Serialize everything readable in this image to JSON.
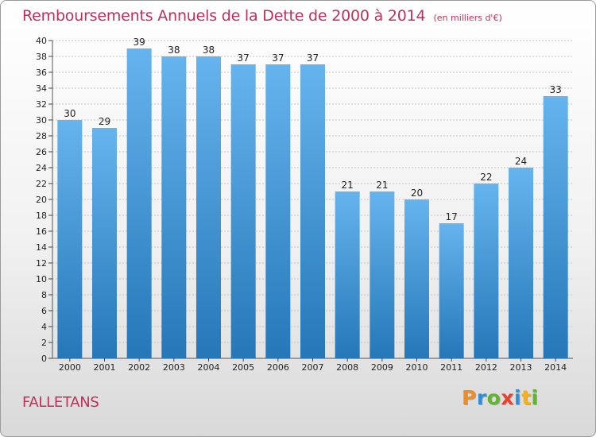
{
  "header": {
    "title": "Remboursements Annuels de la Dette de 2000 à 2014",
    "unit_note": "(en milliers d'€)"
  },
  "footer": {
    "commune": "FALLETANS",
    "brand": "Proxiti",
    "brand_letters": [
      {
        "char": "P",
        "color": "#f28c1e"
      },
      {
        "char": "r",
        "color": "#2e8fd6"
      },
      {
        "char": "o",
        "color": "#63b530"
      },
      {
        "char": "x",
        "color": "#e8412c"
      },
      {
        "char": "i",
        "color": "#2e8fd6"
      },
      {
        "char": "t",
        "color": "#f2b21e"
      },
      {
        "char": "i",
        "color": "#63b530"
      }
    ]
  },
  "colors": {
    "title": "#c0305a",
    "bar_light": "#66b4ee",
    "bar_dark": "#2577b8",
    "grid": "#c4c4c4"
  },
  "chart_data": {
    "type": "bar",
    "title": "Remboursements Annuels de la Dette de 2000 à 2014",
    "categories": [
      "2000",
      "2001",
      "2002",
      "2003",
      "2004",
      "2005",
      "2006",
      "2007",
      "2008",
      "2009",
      "2010",
      "2011",
      "2012",
      "2013",
      "2014"
    ],
    "values": [
      30,
      29,
      39,
      38,
      38,
      37,
      37,
      37,
      21,
      21,
      20,
      17,
      22,
      24,
      33
    ],
    "ylim": [
      0,
      40
    ],
    "yticks": [
      0,
      2,
      4,
      6,
      8,
      10,
      12,
      14,
      16,
      18,
      20,
      22,
      24,
      26,
      28,
      30,
      32,
      34,
      36,
      38,
      40
    ],
    "grid": true,
    "data_labels": true
  }
}
